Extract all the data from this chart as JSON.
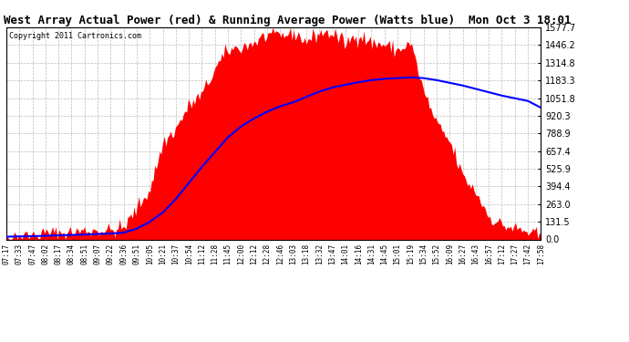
{
  "title": "West Array Actual Power (red) & Running Average Power (Watts blue)  Mon Oct 3 18:01",
  "copyright": "Copyright 2011 Cartronics.com",
  "yticks": [
    0.0,
    131.5,
    263.0,
    394.4,
    525.9,
    657.4,
    788.9,
    920.3,
    1051.8,
    1183.3,
    1314.8,
    1446.2,
    1577.7
  ],
  "ymax": 1577.7,
  "ymin": 0.0,
  "bg_color": "#ffffff",
  "plot_bg_color": "#ffffff",
  "red_color": "#ff0000",
  "blue_color": "#0000ff",
  "title_fontsize": 9,
  "xtick_labels": [
    "07:17",
    "07:33",
    "07:47",
    "08:02",
    "08:17",
    "08:34",
    "08:51",
    "09:07",
    "09:22",
    "09:36",
    "09:51",
    "10:05",
    "10:21",
    "10:37",
    "10:54",
    "11:12",
    "11:28",
    "11:45",
    "12:00",
    "12:12",
    "12:28",
    "12:46",
    "13:03",
    "13:18",
    "13:32",
    "13:47",
    "14:01",
    "14:16",
    "14:31",
    "14:45",
    "15:01",
    "15:19",
    "15:34",
    "15:52",
    "16:09",
    "16:27",
    "16:43",
    "16:57",
    "17:12",
    "17:27",
    "17:42",
    "17:58"
  ],
  "red_data": [
    20,
    25,
    30,
    40,
    50,
    55,
    60,
    65,
    70,
    80,
    250,
    400,
    700,
    900,
    1050,
    1100,
    1300,
    1400,
    1450,
    1500,
    1480,
    1520,
    1540,
    1510,
    1550,
    1530,
    1500,
    1520,
    1480,
    1460,
    1430,
    1380,
    1100,
    900,
    700,
    500,
    350,
    200,
    120,
    80,
    50,
    20
  ],
  "red_noise": [
    5,
    8,
    6,
    10,
    12,
    10,
    8,
    12,
    15,
    20,
    80,
    100,
    120,
    80,
    60,
    80,
    60,
    50,
    40,
    50,
    60,
    40,
    30,
    50,
    40,
    60,
    70,
    50,
    60,
    70,
    80,
    90,
    100,
    80,
    60,
    50,
    40,
    30,
    20,
    15,
    10,
    5
  ],
  "blue_data": [
    20,
    22,
    24,
    27,
    30,
    33,
    36,
    40,
    44,
    50,
    80,
    130,
    200,
    300,
    420,
    540,
    650,
    760,
    840,
    900,
    950,
    990,
    1020,
    1060,
    1100,
    1130,
    1150,
    1170,
    1185,
    1195,
    1200,
    1205,
    1200,
    1185,
    1165,
    1145,
    1120,
    1095,
    1070,
    1050,
    1030,
    980
  ],
  "seed": 42
}
